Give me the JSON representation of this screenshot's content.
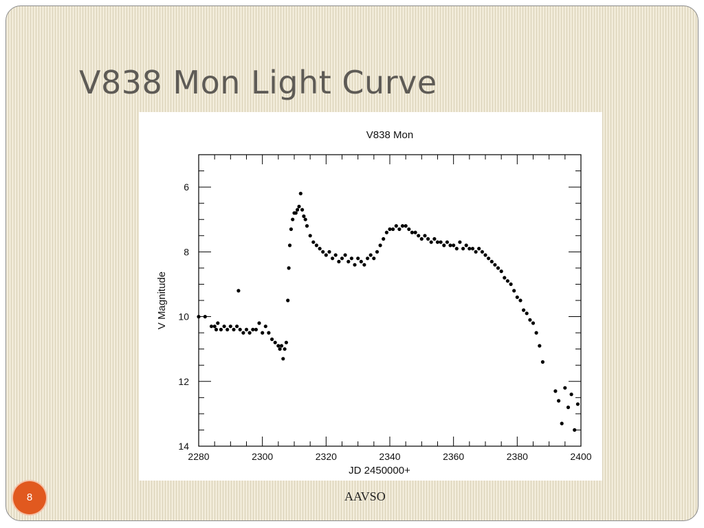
{
  "slide": {
    "title": "V838 Mon Light Curve",
    "footer": "AAVSO",
    "page_number": "8"
  },
  "colors": {
    "background": "#f0ead8",
    "stripe": "#d9d0b6",
    "title": "#5e5b56",
    "slide_number_badge": "#e1591f",
    "marker": "#000000"
  },
  "chart_data": {
    "type": "scatter",
    "title": "V838 Mon",
    "xlabel": "JD 2450000+",
    "ylabel": "V Magnitude",
    "xlim": [
      2280,
      2400
    ],
    "ylim": [
      14,
      5
    ],
    "y_inverted": true,
    "xticks": [
      2280,
      2300,
      2320,
      2340,
      2360,
      2380,
      2400
    ],
    "yticks": [
      6,
      8,
      10,
      12,
      14
    ],
    "grid": false,
    "legend": "none",
    "x": [
      2280,
      2282,
      2284,
      2285,
      2285.5,
      2286,
      2287,
      2288,
      2289,
      2290,
      2291,
      2292,
      2292.5,
      2293,
      2294,
      2295,
      2296,
      2297,
      2298,
      2299,
      2300,
      2301,
      2302,
      2303,
      2304,
      2305,
      2305.5,
      2306,
      2306.5,
      2307,
      2307.5,
      2308,
      2308.3,
      2308.6,
      2309,
      2309.5,
      2310,
      2310.5,
      2311,
      2311.5,
      2312,
      2312.5,
      2313,
      2313.5,
      2314,
      2315,
      2316,
      2317,
      2318,
      2319,
      2320,
      2321,
      2322,
      2323,
      2324,
      2325,
      2326,
      2327,
      2328,
      2329,
      2330,
      2331,
      2332,
      2333,
      2334,
      2335,
      2336,
      2337,
      2338,
      2339,
      2340,
      2341,
      2342,
      2343,
      2344,
      2345,
      2346,
      2347,
      2348,
      2349,
      2350,
      2351,
      2352,
      2353,
      2354,
      2355,
      2356,
      2357,
      2358,
      2359,
      2360,
      2361,
      2362,
      2363,
      2364,
      2365,
      2366,
      2367,
      2368,
      2369,
      2370,
      2371,
      2372,
      2373,
      2374,
      2375,
      2376,
      2377,
      2378,
      2379,
      2380,
      2381,
      2382,
      2383,
      2384,
      2385,
      2386,
      2387,
      2388,
      2392,
      2393,
      2394,
      2395,
      2396,
      2397,
      2398,
      2399
    ],
    "y": [
      10.0,
      10.0,
      10.3,
      10.3,
      10.4,
      10.2,
      10.4,
      10.3,
      10.4,
      10.3,
      10.4,
      10.3,
      9.2,
      10.4,
      10.5,
      10.4,
      10.5,
      10.4,
      10.4,
      10.2,
      10.5,
      10.3,
      10.5,
      10.7,
      10.8,
      10.9,
      11.0,
      10.9,
      11.3,
      11.0,
      10.8,
      9.5,
      8.5,
      7.8,
      7.3,
      7.0,
      6.8,
      6.8,
      6.7,
      6.6,
      6.2,
      6.7,
      6.9,
      7.0,
      7.2,
      7.5,
      7.7,
      7.8,
      7.9,
      8.0,
      8.1,
      8.0,
      8.2,
      8.1,
      8.3,
      8.2,
      8.1,
      8.3,
      8.2,
      8.4,
      8.2,
      8.3,
      8.4,
      8.2,
      8.1,
      8.2,
      8.0,
      7.8,
      7.6,
      7.4,
      7.3,
      7.3,
      7.2,
      7.3,
      7.2,
      7.2,
      7.3,
      7.4,
      7.4,
      7.5,
      7.6,
      7.5,
      7.6,
      7.7,
      7.6,
      7.7,
      7.7,
      7.8,
      7.7,
      7.8,
      7.8,
      7.9,
      7.7,
      7.9,
      7.8,
      7.9,
      7.9,
      8.0,
      7.9,
      8.0,
      8.1,
      8.2,
      8.3,
      8.4,
      8.5,
      8.6,
      8.8,
      8.9,
      9.0,
      9.2,
      9.4,
      9.5,
      9.8,
      9.9,
      10.1,
      10.2,
      10.5,
      10.9,
      11.4,
      12.3,
      12.6,
      13.3,
      12.2,
      12.8,
      12.4,
      13.5,
      12.7
    ]
  }
}
